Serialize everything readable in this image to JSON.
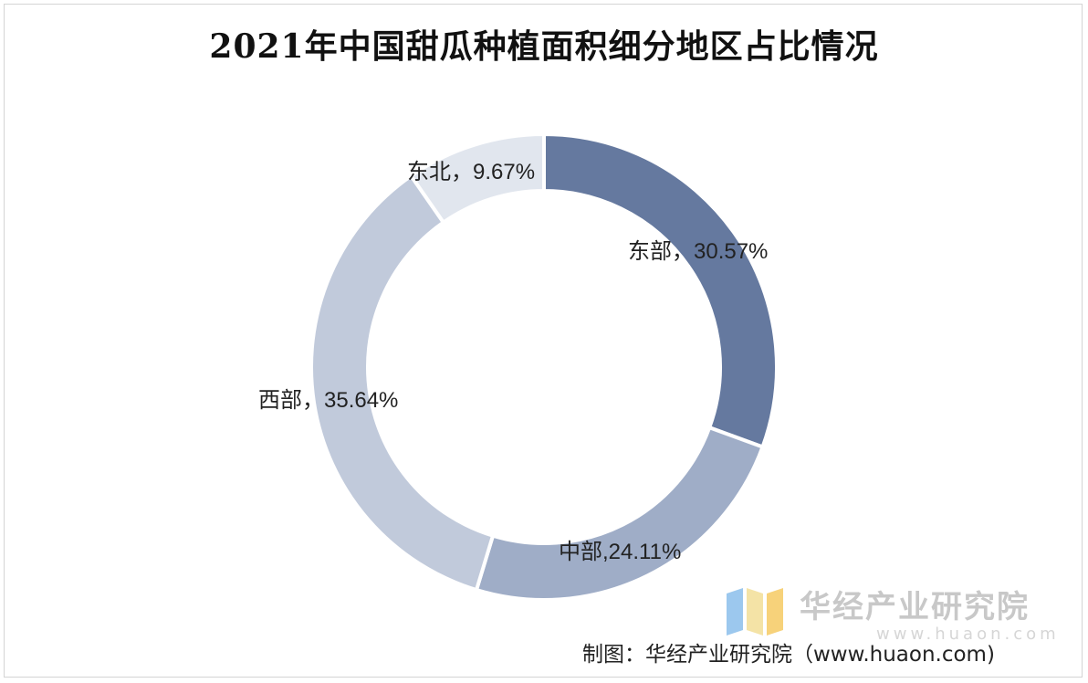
{
  "title": "2021年中国甜瓜种植面积细分地区占比情况",
  "source": "制图：华经产业研究院（www.huaon.com)",
  "watermark": {
    "name": "华经产业研究院",
    "url": "www.huaon.com"
  },
  "chart_data": {
    "type": "pie",
    "title": "2021年中国甜瓜种植面积细分地区占比情况",
    "start_direction": "12 o'clock, clockwise",
    "slices": [
      {
        "name": "东部",
        "value": 30.57,
        "label": "东部，30.57%",
        "color": "#65799f"
      },
      {
        "name": "中部",
        "value": 24.11,
        "label": "中部,24.11%",
        "color": "#9fadc7"
      },
      {
        "name": "西部",
        "value": 35.64,
        "label": "西部，35.64%",
        "color": "#c1cadb"
      },
      {
        "name": "东北",
        "value": 9.67,
        "label": "东北，9.67%",
        "color": "#e1e6ee"
      }
    ]
  }
}
